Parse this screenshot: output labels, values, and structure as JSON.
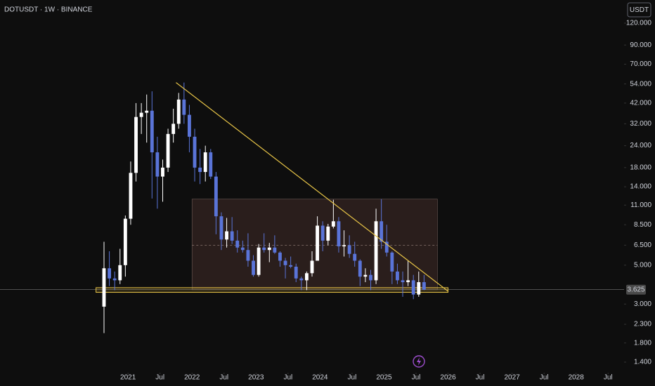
{
  "chart_data": {
    "type": "candlestick",
    "title": "DOTUSDT · 1W · BINANCE",
    "currency_button": "USDT",
    "log_scale": true,
    "up_color": "#ffffff",
    "down_color": "#5a74d8",
    "x": [
      "2020-08",
      "2020-09",
      "2020-10",
      "2020-11",
      "2020-12",
      "2021-01",
      "2021-02",
      "2021-03",
      "2021-04",
      "2021-05",
      "2021-06",
      "2021-07",
      "2021-08",
      "2021-09",
      "2021-10",
      "2021-11",
      "2021-12",
      "2022-01",
      "2022-02",
      "2022-03",
      "2022-04",
      "2022-05",
      "2022-06",
      "2022-07",
      "2022-08",
      "2022-09",
      "2022-10",
      "2022-11",
      "2022-12",
      "2023-01",
      "2023-02",
      "2023-03",
      "2023-04",
      "2023-05",
      "2023-06",
      "2023-07",
      "2023-08",
      "2023-09",
      "2023-10",
      "2023-11",
      "2023-12",
      "2024-01",
      "2024-02",
      "2024-03",
      "2024-04",
      "2024-05",
      "2024-06",
      "2024-07",
      "2024-08",
      "2024-09",
      "2024-10",
      "2024-11",
      "2024-12",
      "2025-01",
      "2025-02",
      "2025-03",
      "2025-04",
      "2025-05",
      "2025-06",
      "2025-07",
      "2025-08"
    ],
    "open": [
      2.9,
      4.8,
      4.2,
      4.1,
      5.0,
      9.2,
      16.8,
      35,
      37,
      38,
      22,
      16,
      18,
      28,
      32,
      44,
      36,
      27,
      18,
      17,
      22,
      16,
      9.5,
      7,
      7.8,
      6.9,
      6.3,
      6.1,
      5.3,
      4.4,
      6.3,
      6.1,
      6.3,
      5.9,
      5.3,
      5.0,
      4.9,
      4.2,
      4.1,
      4.5,
      5.3,
      8.4,
      6.9,
      8.3,
      8.9,
      6.4,
      6.5,
      5.8,
      5.3,
      4.3,
      4.4,
      4.1,
      8.9,
      6.8,
      5.9,
      4.6,
      4.1,
      4.0,
      4.1,
      3.4,
      4.0
    ],
    "high": [
      6.8,
      6.0,
      4.6,
      6.2,
      9.6,
      19.5,
      42,
      42,
      47,
      49,
      27,
      20,
      30,
      39,
      48,
      55,
      41,
      30,
      23,
      24,
      23,
      17,
      10,
      9.3,
      9.4,
      7.9,
      6.9,
      7.6,
      5.7,
      6.6,
      7.6,
      6.7,
      7.4,
      6.0,
      5.5,
      5.6,
      5.1,
      4.3,
      4.6,
      6.0,
      9.5,
      8.9,
      8.6,
      11.8,
      9.4,
      7.9,
      7.4,
      6.8,
      5.4,
      4.8,
      4.7,
      10.5,
      11.9,
      8.5,
      6.0,
      5.1,
      4.6,
      5.3,
      4.4,
      4.6,
      4.4
    ],
    "low": [
      2.05,
      3.8,
      3.6,
      3.9,
      4.3,
      8.5,
      15,
      28,
      25,
      12,
      10.5,
      11.5,
      17,
      25,
      30,
      32,
      22,
      15,
      14.5,
      15,
      15.5,
      7.5,
      6.1,
      6.3,
      6.6,
      5.9,
      5.9,
      4.9,
      4.3,
      4.3,
      5.9,
      5.2,
      5.8,
      4.9,
      4.2,
      4.8,
      4.0,
      3.6,
      3.6,
      4.3,
      5.3,
      6.0,
      6.5,
      8.1,
      5.9,
      5.6,
      5.5,
      4.9,
      3.8,
      4.0,
      3.6,
      3.9,
      6.2,
      5.6,
      3.9,
      3.9,
      3.3,
      3.8,
      3.2,
      3.3,
      3.6
    ],
    "close": [
      4.8,
      4.2,
      4.1,
      5.0,
      9.2,
      16.8,
      35,
      37,
      38,
      22,
      16,
      18,
      28,
      32,
      44,
      36,
      27,
      18,
      17,
      22,
      16,
      9.5,
      7.0,
      7.8,
      6.9,
      6.3,
      6.1,
      5.3,
      4.4,
      6.3,
      6.1,
      6.3,
      5.9,
      5.3,
      5.0,
      4.9,
      4.2,
      4.1,
      4.5,
      5.3,
      8.4,
      6.9,
      8.3,
      8.9,
      6.4,
      6.5,
      5.8,
      5.3,
      4.3,
      4.4,
      4.1,
      8.9,
      6.8,
      5.9,
      4.6,
      4.1,
      4.0,
      4.1,
      3.4,
      4.0,
      3.625
    ],
    "last_price": {
      "value": 3.625,
      "label": "3.625"
    },
    "ylim": [
      1.23,
      162.6
    ],
    "yticks": [
      {
        "value": 120,
        "label": "120.000"
      },
      {
        "value": 90,
        "label": "90.000"
      },
      {
        "value": 70,
        "label": "70.000"
      },
      {
        "value": 54,
        "label": "54.000"
      },
      {
        "value": 42,
        "label": "42.000"
      },
      {
        "value": 32,
        "label": "32.000"
      },
      {
        "value": 24,
        "label": "24.000"
      },
      {
        "value": 18,
        "label": "18.000"
      },
      {
        "value": 14,
        "label": "14.000"
      },
      {
        "value": 11,
        "label": "11.000"
      },
      {
        "value": 8.5,
        "label": "8.500"
      },
      {
        "value": 6.5,
        "label": "6.500"
      },
      {
        "value": 5,
        "label": "5.000"
      },
      {
        "value": 3,
        "label": "3.000"
      },
      {
        "value": 2.3,
        "label": "2.300"
      },
      {
        "value": 1.8,
        "label": "1.800"
      },
      {
        "value": 1.4,
        "label": "1.400"
      }
    ],
    "xlim": [
      "2019-01",
      "2028-10"
    ],
    "xticks": [
      {
        "value": "2021-01",
        "label": "2021"
      },
      {
        "value": "2021-07",
        "label": "Jul"
      },
      {
        "value": "2022-01",
        "label": "2022"
      },
      {
        "value": "2022-07",
        "label": "Jul"
      },
      {
        "value": "2023-01",
        "label": "2023"
      },
      {
        "value": "2023-07",
        "label": "Jul"
      },
      {
        "value": "2024-01",
        "label": "2024"
      },
      {
        "value": "2024-07",
        "label": "Jul"
      },
      {
        "value": "2025-01",
        "label": "2025"
      },
      {
        "value": "2025-07",
        "label": "Jul"
      },
      {
        "value": "2026-01",
        "label": "2026"
      },
      {
        "value": "2026-07",
        "label": "Jul"
      },
      {
        "value": "2027-01",
        "label": "2027"
      },
      {
        "value": "2027-07",
        "label": "Jul"
      },
      {
        "value": "2028-01",
        "label": "2028"
      },
      {
        "value": "2028-07",
        "label": "Jul"
      }
    ],
    "range_box": {
      "x": [
        "2022-01",
        "2025-11"
      ],
      "price": [
        3.62,
        11.9
      ],
      "mid": 6.5,
      "color": "#2a1e1c"
    },
    "trendline": {
      "x": [
        "2021-10",
        "2026-01"
      ],
      "price": [
        55,
        3.55
      ],
      "color": "#e8c547"
    },
    "support_band": {
      "x": [
        "2020-07",
        "2026-01"
      ],
      "price": [
        3.5,
        3.72
      ],
      "color": "#e8c547"
    }
  }
}
